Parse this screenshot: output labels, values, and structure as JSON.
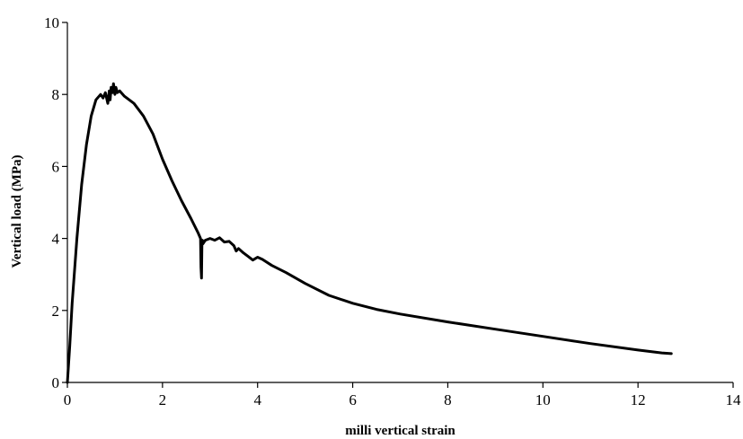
{
  "chart_data": {
    "type": "line",
    "title": "",
    "xlabel": "milli vertical strain",
    "ylabel": "Vertical load (MPa)",
    "xlim": [
      0,
      14
    ],
    "ylim": [
      0,
      10
    ],
    "xticks": [
      0,
      2,
      4,
      6,
      8,
      10,
      12,
      14
    ],
    "yticks": [
      0,
      2,
      4,
      6,
      8,
      10
    ],
    "grid": false,
    "legend": "none",
    "line_color": "#000000",
    "series": [
      {
        "x": [
          0,
          0.05,
          0.1,
          0.2,
          0.3,
          0.4,
          0.5,
          0.6,
          0.7,
          0.75,
          0.8,
          0.85,
          0.88,
          0.9,
          0.92,
          0.95,
          0.97,
          1.0,
          1.02,
          1.05,
          1.1,
          1.2,
          1.4,
          1.6,
          1.8,
          2.0,
          2.2,
          2.4,
          2.6,
          2.75,
          2.8,
          2.81,
          2.82,
          2.83,
          2.84,
          2.85,
          2.9,
          3.0,
          3.1,
          3.2,
          3.3,
          3.4,
          3.5,
          3.55,
          3.6,
          3.7,
          3.8,
          3.9,
          4.0,
          4.1,
          4.3,
          4.6,
          5.0,
          5.5,
          6.0,
          6.5,
          7.0,
          8.0,
          9.0,
          10.0,
          11.0,
          12.0,
          12.5,
          12.7
        ],
        "y": [
          0,
          1.0,
          2.2,
          4.0,
          5.5,
          6.6,
          7.4,
          7.85,
          8.0,
          7.9,
          8.05,
          7.75,
          8.1,
          7.85,
          8.2,
          8.05,
          8.3,
          8.0,
          8.2,
          8.05,
          8.1,
          7.95,
          7.75,
          7.4,
          6.9,
          6.2,
          5.6,
          5.05,
          4.55,
          4.15,
          4.0,
          3.2,
          2.9,
          3.9,
          3.95,
          3.85,
          3.95,
          4.0,
          3.95,
          4.02,
          3.9,
          3.92,
          3.8,
          3.65,
          3.72,
          3.6,
          3.5,
          3.4,
          3.48,
          3.42,
          3.25,
          3.05,
          2.75,
          2.42,
          2.2,
          2.03,
          1.9,
          1.68,
          1.48,
          1.28,
          1.08,
          0.9,
          0.82,
          0.8
        ]
      }
    ]
  }
}
